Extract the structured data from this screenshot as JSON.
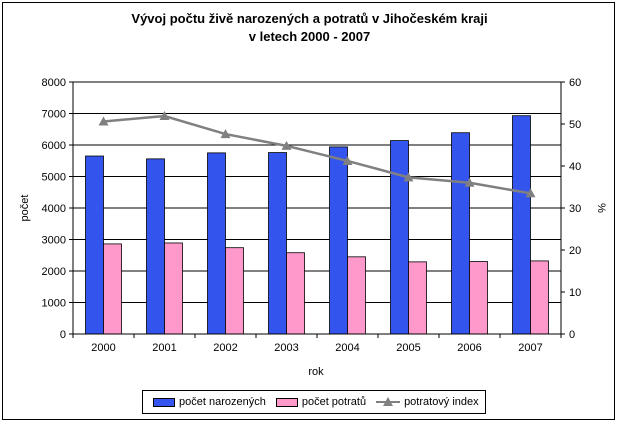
{
  "chart_data": {
    "type": "bar",
    "title": "Vývoj počtu živě narozených a potratů v Jihočeském kraji",
    "subtitle": "v letech 2000 - 2007",
    "xlabel": "rok",
    "ylabel": "počet",
    "y2label": "%",
    "categories": [
      "2000",
      "2001",
      "2002",
      "2003",
      "2004",
      "2005",
      "2006",
      "2007"
    ],
    "ylim": [
      0,
      8000
    ],
    "y2lim": [
      0,
      60
    ],
    "yticks": [
      "0",
      "1000",
      "2000",
      "3000",
      "4000",
      "5000",
      "6000",
      "7000",
      "8000"
    ],
    "y2ticks": [
      "0",
      "10",
      "20",
      "30",
      "40",
      "50",
      "60"
    ],
    "grid": "horizontal",
    "legend_position": "bottom",
    "series": [
      {
        "name": "počet narozených",
        "type": "bar",
        "axis": "left",
        "color": "#3355ee",
        "values": [
          5650,
          5560,
          5750,
          5760,
          5940,
          6140,
          6390,
          6930
        ]
      },
      {
        "name": "počet potratů",
        "type": "bar",
        "axis": "left",
        "color": "#ff99cc",
        "values": [
          2860,
          2890,
          2740,
          2580,
          2450,
          2290,
          2300,
          2320
        ]
      },
      {
        "name": "potratový index",
        "type": "line",
        "axis": "right",
        "color": "#808080",
        "values": [
          50.6,
          51.9,
          47.6,
          44.8,
          41.2,
          37.3,
          36.0,
          33.5
        ]
      }
    ]
  }
}
